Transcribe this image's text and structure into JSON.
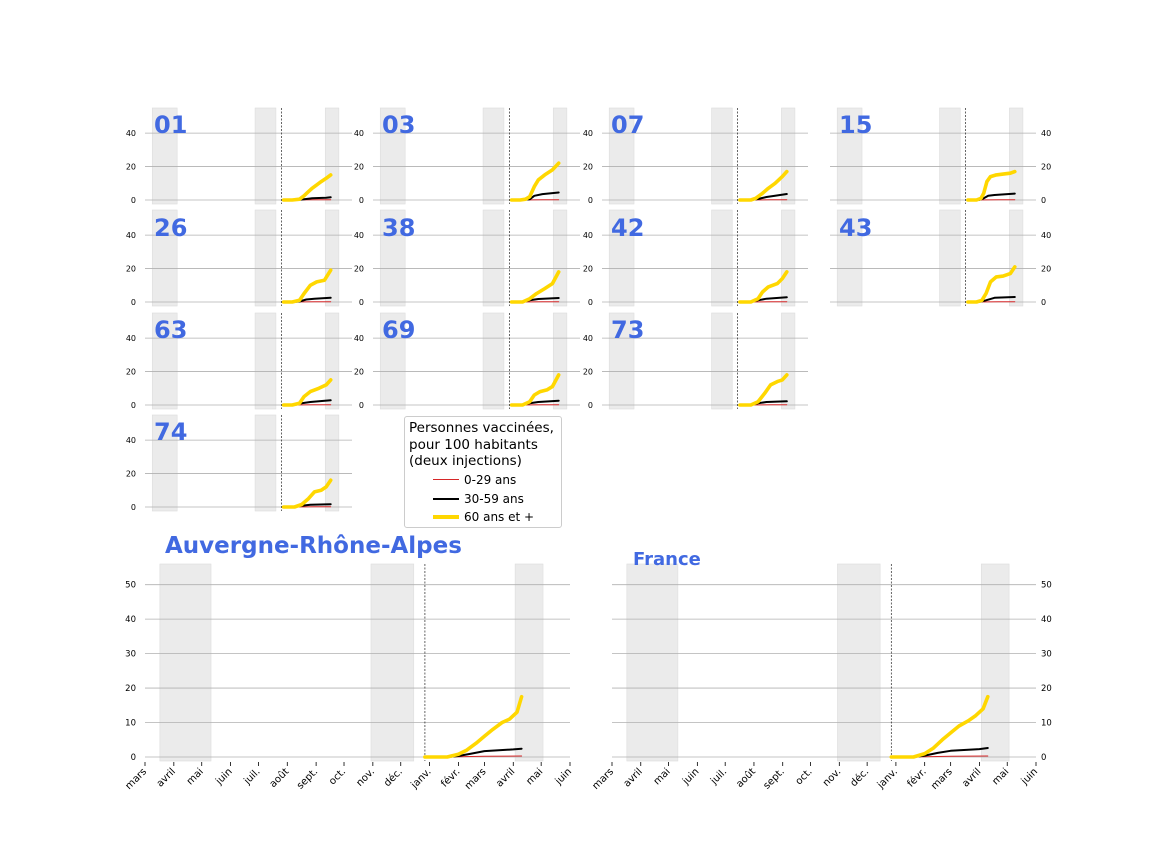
{
  "colors": {
    "title": "#4169e1",
    "age_0_29": "#d62728",
    "age_30_59": "#000000",
    "age_60_plus": "#ffd700",
    "shade": "#ebebeb",
    "grid": "#b0b0b0"
  },
  "legend": {
    "title_lines": [
      "Personnes vaccinées,",
      "pour 100 habitants",
      "(deux injections)"
    ],
    "items": [
      {
        "label": "0-29 ans",
        "color": "#d62728"
      },
      {
        "label": "30-59 ans",
        "color": "#000000"
      },
      {
        "label": "60 ans et +",
        "color": "#ffd700"
      }
    ]
  },
  "chart_data": [
    {
      "type": "line",
      "title": "01",
      "ylim": [
        0,
        55
      ],
      "yticks": [
        0,
        20,
        40
      ],
      "series": [
        {
          "name": "0-29 ans",
          "x": [
            "2021-01-01",
            "2021-01-20",
            "2021-02-10",
            "2021-03-01",
            "2021-03-20",
            "2021-04-05",
            "2021-04-15"
          ],
          "values": [
            0,
            0,
            0.05,
            0.1,
            0.15,
            0.2,
            0.2
          ]
        },
        {
          "name": "30-59 ans",
          "x": [
            "2021-01-01",
            "2021-01-20",
            "2021-02-05",
            "2021-02-20",
            "2021-03-05",
            "2021-03-20",
            "2021-04-05",
            "2021-04-15"
          ],
          "values": [
            0,
            0,
            0.1,
            0.6,
            1.0,
            1.2,
            1.4,
            1.6
          ]
        },
        {
          "name": "60 ans et +",
          "x": [
            "2021-01-01",
            "2021-01-20",
            "2021-02-05",
            "2021-02-15",
            "2021-02-25",
            "2021-03-05",
            "2021-03-15",
            "2021-03-25",
            "2021-04-05",
            "2021-04-15"
          ],
          "values": [
            0,
            0,
            0.5,
            2.5,
            5,
            7,
            9,
            11,
            13,
            15
          ]
        }
      ]
    },
    {
      "type": "line",
      "title": "03",
      "ylim": [
        0,
        55
      ],
      "yticks": [
        0,
        20,
        40
      ],
      "series": [
        {
          "name": "0-29 ans",
          "x": [
            "2021-01-01",
            "2021-02-10",
            "2021-03-10",
            "2021-04-15"
          ],
          "values": [
            0,
            0.05,
            0.15,
            0.2
          ]
        },
        {
          "name": "30-59 ans",
          "x": [
            "2021-01-01",
            "2021-01-25",
            "2021-02-10",
            "2021-02-20",
            "2021-03-10",
            "2021-04-15"
          ],
          "values": [
            0,
            0,
            0.4,
            2.5,
            3.5,
            4.5
          ]
        },
        {
          "name": "60 ans et +",
          "x": [
            "2021-01-01",
            "2021-01-20",
            "2021-02-01",
            "2021-02-10",
            "2021-02-20",
            "2021-03-01",
            "2021-03-15",
            "2021-04-01",
            "2021-04-15"
          ],
          "values": [
            0,
            0,
            0.5,
            2,
            8,
            12,
            15,
            18,
            22
          ]
        }
      ]
    },
    {
      "type": "line",
      "title": "07",
      "ylim": [
        0,
        55
      ],
      "yticks": [
        0,
        20,
        40
      ],
      "series": [
        {
          "name": "0-29 ans",
          "x": [
            "2021-01-01",
            "2021-02-10",
            "2021-03-10",
            "2021-04-15"
          ],
          "values": [
            0,
            0.05,
            0.15,
            0.2
          ]
        },
        {
          "name": "30-59 ans",
          "x": [
            "2021-01-01",
            "2021-01-25",
            "2021-02-10",
            "2021-03-01",
            "2021-03-20",
            "2021-04-15"
          ],
          "values": [
            0,
            0,
            0.6,
            1.8,
            2.6,
            3.6
          ]
        },
        {
          "name": "60 ans et +",
          "x": [
            "2021-01-01",
            "2021-01-25",
            "2021-02-05",
            "2021-02-20",
            "2021-03-05",
            "2021-03-20",
            "2021-04-05",
            "2021-04-15"
          ],
          "values": [
            0,
            0,
            1,
            4,
            7,
            10,
            14,
            17
          ]
        }
      ]
    },
    {
      "type": "line",
      "title": "15",
      "ylim": [
        0,
        55
      ],
      "yticks": [
        0,
        20,
        40
      ],
      "series": [
        {
          "name": "0-29 ans",
          "x": [
            "2021-01-01",
            "2021-02-10",
            "2021-03-10",
            "2021-04-15"
          ],
          "values": [
            0,
            0.05,
            0.15,
            0.2
          ]
        },
        {
          "name": "30-59 ans",
          "x": [
            "2021-01-01",
            "2021-01-25",
            "2021-02-05",
            "2021-02-15",
            "2021-03-01",
            "2021-04-15"
          ],
          "values": [
            0,
            0,
            1,
            2.5,
            3,
            3.8
          ]
        },
        {
          "name": "60 ans et +",
          "x": [
            "2021-01-01",
            "2021-01-20",
            "2021-01-30",
            "2021-02-05",
            "2021-02-12",
            "2021-02-20",
            "2021-03-05",
            "2021-03-20",
            "2021-04-05",
            "2021-04-15"
          ],
          "values": [
            0,
            0,
            1,
            4,
            11,
            14,
            15,
            15.5,
            16,
            17
          ]
        }
      ]
    },
    {
      "type": "line",
      "title": "26",
      "ylim": [
        0,
        55
      ],
      "yticks": [
        0,
        20,
        40
      ],
      "series": [
        {
          "name": "0-29 ans",
          "x": [
            "2021-01-01",
            "2021-02-10",
            "2021-03-10",
            "2021-04-15"
          ],
          "values": [
            0,
            0.05,
            0.15,
            0.2
          ]
        },
        {
          "name": "30-59 ans",
          "x": [
            "2021-01-01",
            "2021-01-20",
            "2021-02-05",
            "2021-02-20",
            "2021-03-10",
            "2021-04-15"
          ],
          "values": [
            0,
            0,
            0.3,
            1.5,
            2,
            2.5
          ]
        },
        {
          "name": "60 ans et +",
          "x": [
            "2021-01-01",
            "2021-01-20",
            "2021-02-05",
            "2021-02-15",
            "2021-03-01",
            "2021-03-15",
            "2021-04-01",
            "2021-04-15"
          ],
          "values": [
            0,
            0,
            1,
            5,
            10,
            12,
            13,
            19
          ]
        }
      ]
    },
    {
      "type": "line",
      "title": "38",
      "ylim": [
        0,
        55
      ],
      "yticks": [
        0,
        20,
        40
      ],
      "series": [
        {
          "name": "0-29 ans",
          "x": [
            "2021-01-01",
            "2021-02-10",
            "2021-03-10",
            "2021-04-15"
          ],
          "values": [
            0,
            0.05,
            0.15,
            0.2
          ]
        },
        {
          "name": "30-59 ans",
          "x": [
            "2021-01-01",
            "2021-01-25",
            "2021-02-10",
            "2021-03-01",
            "2021-04-15"
          ],
          "values": [
            0,
            0,
            1,
            1.8,
            2.4
          ]
        },
        {
          "name": "60 ans et +",
          "x": [
            "2021-01-01",
            "2021-01-25",
            "2021-02-10",
            "2021-02-25",
            "2021-03-15",
            "2021-04-01",
            "2021-04-15"
          ],
          "values": [
            0,
            0,
            2,
            5,
            8,
            11,
            18
          ]
        }
      ]
    },
    {
      "type": "line",
      "title": "42",
      "ylim": [
        0,
        55
      ],
      "yticks": [
        0,
        20,
        40
      ],
      "series": [
        {
          "name": "0-29 ans",
          "x": [
            "2021-01-01",
            "2021-02-10",
            "2021-03-10",
            "2021-04-15"
          ],
          "values": [
            0,
            0.05,
            0.15,
            0.2
          ]
        },
        {
          "name": "30-59 ans",
          "x": [
            "2021-01-01",
            "2021-01-25",
            "2021-02-10",
            "2021-03-01",
            "2021-04-15"
          ],
          "values": [
            0,
            0,
            1,
            2,
            2.8
          ]
        },
        {
          "name": "60 ans et +",
          "x": [
            "2021-01-01",
            "2021-01-25",
            "2021-02-10",
            "2021-02-20",
            "2021-03-05",
            "2021-03-25",
            "2021-04-05",
            "2021-04-15"
          ],
          "values": [
            0,
            0,
            2,
            6,
            9,
            11,
            14,
            18
          ]
        }
      ]
    },
    {
      "type": "line",
      "title": "43",
      "ylim": [
        0,
        55
      ],
      "yticks": [
        0,
        20,
        40
      ],
      "series": [
        {
          "name": "0-29 ans",
          "x": [
            "2021-01-01",
            "2021-02-10",
            "2021-03-10",
            "2021-04-15"
          ],
          "values": [
            0,
            0.05,
            0.15,
            0.2
          ]
        },
        {
          "name": "30-59 ans",
          "x": [
            "2021-01-01",
            "2021-01-25",
            "2021-02-10",
            "2021-03-01",
            "2021-04-15"
          ],
          "values": [
            0,
            0,
            1,
            2.5,
            3
          ]
        },
        {
          "name": "60 ans et +",
          "x": [
            "2021-01-01",
            "2021-01-20",
            "2021-02-01",
            "2021-02-10",
            "2021-02-20",
            "2021-03-05",
            "2021-03-20",
            "2021-04-05",
            "2021-04-15"
          ],
          "values": [
            0,
            0,
            1,
            5,
            12,
            15,
            15.5,
            17,
            21
          ]
        }
      ]
    },
    {
      "type": "line",
      "title": "63",
      "ylim": [
        0,
        55
      ],
      "yticks": [
        0,
        20,
        40
      ],
      "series": [
        {
          "name": "0-29 ans",
          "x": [
            "2021-01-01",
            "2021-02-10",
            "2021-03-10",
            "2021-04-15"
          ],
          "values": [
            0,
            0.05,
            0.15,
            0.2
          ]
        },
        {
          "name": "30-59 ans",
          "x": [
            "2021-01-01",
            "2021-01-25",
            "2021-02-10",
            "2021-03-01",
            "2021-04-15"
          ],
          "values": [
            0,
            0,
            1,
            1.8,
            2.8
          ]
        },
        {
          "name": "60 ans et +",
          "x": [
            "2021-01-01",
            "2021-01-20",
            "2021-02-05",
            "2021-02-15",
            "2021-03-01",
            "2021-03-20",
            "2021-04-05",
            "2021-04-15"
          ],
          "values": [
            0,
            0,
            1,
            5,
            8,
            10,
            12,
            15
          ]
        }
      ]
    },
    {
      "type": "line",
      "title": "69",
      "ylim": [
        0,
        55
      ],
      "yticks": [
        0,
        20,
        40
      ],
      "series": [
        {
          "name": "0-29 ans",
          "x": [
            "2021-01-01",
            "2021-02-10",
            "2021-03-10",
            "2021-04-15"
          ],
          "values": [
            0,
            0.05,
            0.15,
            0.2
          ]
        },
        {
          "name": "30-59 ans",
          "x": [
            "2021-01-01",
            "2021-01-25",
            "2021-02-10",
            "2021-03-01",
            "2021-04-15"
          ],
          "values": [
            0,
            0,
            1,
            1.8,
            2.6
          ]
        },
        {
          "name": "60 ans et +",
          "x": [
            "2021-01-01",
            "2021-01-25",
            "2021-02-10",
            "2021-02-20",
            "2021-03-05",
            "2021-03-20",
            "2021-04-01",
            "2021-04-15"
          ],
          "values": [
            0,
            0,
            2,
            6,
            8,
            9,
            11,
            18
          ]
        }
      ]
    },
    {
      "type": "line",
      "title": "73",
      "ylim": [
        0,
        55
      ],
      "yticks": [
        0,
        20,
        40
      ],
      "series": [
        {
          "name": "0-29 ans",
          "x": [
            "2021-01-01",
            "2021-02-10",
            "2021-03-10",
            "2021-04-15"
          ],
          "values": [
            0,
            0.05,
            0.15,
            0.2
          ]
        },
        {
          "name": "30-59 ans",
          "x": [
            "2021-01-01",
            "2021-01-25",
            "2021-02-10",
            "2021-03-01",
            "2021-04-15"
          ],
          "values": [
            0,
            0,
            1,
            1.8,
            2.2
          ]
        },
        {
          "name": "60 ans et +",
          "x": [
            "2021-01-01",
            "2021-01-25",
            "2021-02-10",
            "2021-02-25",
            "2021-03-10",
            "2021-03-25",
            "2021-04-05",
            "2021-04-15"
          ],
          "values": [
            0,
            0,
            2,
            7,
            12,
            14,
            15,
            18
          ]
        }
      ]
    },
    {
      "type": "line",
      "title": "74",
      "ylim": [
        0,
        55
      ],
      "yticks": [
        0,
        20,
        40
      ],
      "series": [
        {
          "name": "0-29 ans",
          "x": [
            "2021-01-01",
            "2021-02-10",
            "2021-03-10",
            "2021-04-15"
          ],
          "values": [
            0,
            0.05,
            0.15,
            0.2
          ]
        },
        {
          "name": "30-59 ans",
          "x": [
            "2021-01-01",
            "2021-01-25",
            "2021-02-10",
            "2021-03-01",
            "2021-04-15"
          ],
          "values": [
            0,
            0,
            0.8,
            1.3,
            1.7
          ]
        },
        {
          "name": "60 ans et +",
          "x": [
            "2021-01-01",
            "2021-01-25",
            "2021-02-10",
            "2021-02-25",
            "2021-03-10",
            "2021-03-25",
            "2021-04-05",
            "2021-04-15"
          ],
          "values": [
            0,
            0,
            1.5,
            5,
            9,
            10,
            12,
            16
          ]
        }
      ]
    },
    {
      "type": "line",
      "title": "Auvergne-Rhône-Alpes",
      "ylim": [
        0,
        56
      ],
      "yticks": [
        0,
        10,
        20,
        30,
        40,
        50
      ],
      "xticks": [
        "mars",
        "avril",
        "mai",
        "juin",
        "juil.",
        "août",
        "sept.",
        "oct.",
        "nov.",
        "déc.",
        "janv.",
        "févr.",
        "mars",
        "avril",
        "mai",
        "juin"
      ],
      "series": [
        {
          "name": "0-29 ans",
          "x": [
            "2020-12-27",
            "2021-02-01",
            "2021-03-01",
            "2021-04-10"
          ],
          "values": [
            0,
            0.05,
            0.2,
            0.3
          ]
        },
        {
          "name": "30-59 ans",
          "x": [
            "2020-12-27",
            "2021-01-20",
            "2021-02-01",
            "2021-02-15",
            "2021-03-01",
            "2021-04-01",
            "2021-04-10"
          ],
          "values": [
            0,
            0,
            0.3,
            1,
            1.7,
            2.2,
            2.4
          ]
        },
        {
          "name": "60 ans et +",
          "x": [
            "2020-12-27",
            "2021-01-20",
            "2021-02-01",
            "2021-02-10",
            "2021-02-20",
            "2021-03-01",
            "2021-03-10",
            "2021-03-20",
            "2021-03-28",
            "2021-04-05",
            "2021-04-10"
          ],
          "values": [
            0,
            0,
            0.8,
            2,
            4,
            6,
            8,
            10,
            11,
            13,
            17.5
          ]
        }
      ]
    },
    {
      "type": "line",
      "title": "France",
      "ylim": [
        0,
        56
      ],
      "yticks": [
        0,
        10,
        20,
        30,
        40,
        50
      ],
      "xticks": [
        "mars",
        "avril",
        "mai",
        "juin",
        "juil.",
        "août",
        "sept.",
        "oct.",
        "nov.",
        "déc.",
        "janv.",
        "févr.",
        "mars",
        "avril",
        "mai",
        "juin"
      ],
      "series": [
        {
          "name": "0-29 ans",
          "x": [
            "2020-12-27",
            "2021-02-01",
            "2021-03-01",
            "2021-04-10"
          ],
          "values": [
            0,
            0.05,
            0.2,
            0.3
          ]
        },
        {
          "name": "30-59 ans",
          "x": [
            "2020-12-27",
            "2021-01-20",
            "2021-02-01",
            "2021-02-15",
            "2021-03-01",
            "2021-04-01",
            "2021-04-10"
          ],
          "values": [
            0,
            0,
            0.4,
            1.2,
            1.8,
            2.3,
            2.6
          ]
        },
        {
          "name": "60 ans et +",
          "x": [
            "2020-12-27",
            "2021-01-20",
            "2021-02-01",
            "2021-02-10",
            "2021-02-20",
            "2021-03-01",
            "2021-03-10",
            "2021-03-20",
            "2021-03-28",
            "2021-04-05",
            "2021-04-10"
          ],
          "values": [
            0,
            0,
            1,
            2.5,
            5,
            7,
            9,
            10.5,
            12,
            14,
            17.5
          ]
        }
      ]
    }
  ]
}
